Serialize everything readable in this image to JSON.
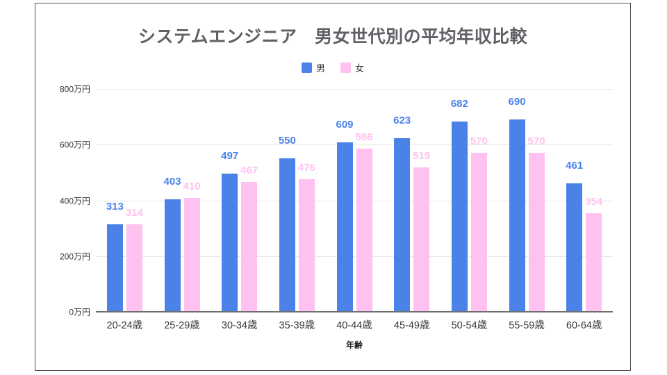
{
  "chart_data": {
    "type": "bar",
    "title": "システムエンジニア　男女世代別の平均年収比較",
    "xlabel": "年齢",
    "ylabel": "",
    "ylim": [
      0,
      800
    ],
    "grid": true,
    "legend_position": "top-center",
    "categories": [
      "20-24歳",
      "25-29歳",
      "30-34歳",
      "35-39歳",
      "40-44歳",
      "45-49歳",
      "50-54歳",
      "55-59歳",
      "60-64歳"
    ],
    "series": [
      {
        "name": "男",
        "color": "#4a82e8",
        "values": [
          313,
          403,
          497,
          550,
          609,
          623,
          682,
          690,
          461
        ]
      },
      {
        "name": "女",
        "color": "#ffc2f0",
        "values": [
          314,
          410,
          467,
          476,
          586,
          519,
          570,
          570,
          354
        ]
      }
    ],
    "y_ticks": [
      {
        "value": 0,
        "label": "0万円"
      },
      {
        "value": 200,
        "label": "200万円"
      },
      {
        "value": 400,
        "label": "400万円"
      },
      {
        "value": 600,
        "label": "600万円"
      },
      {
        "value": 800,
        "label": "800万円"
      }
    ],
    "colors": {
      "male": "#4a82e8",
      "female": "#ffc2f0",
      "gridline": "#e6e6e6",
      "axis_line": "#6e6e6e",
      "title_text": "#5f6066",
      "card_border": "#4d4d4d"
    }
  }
}
